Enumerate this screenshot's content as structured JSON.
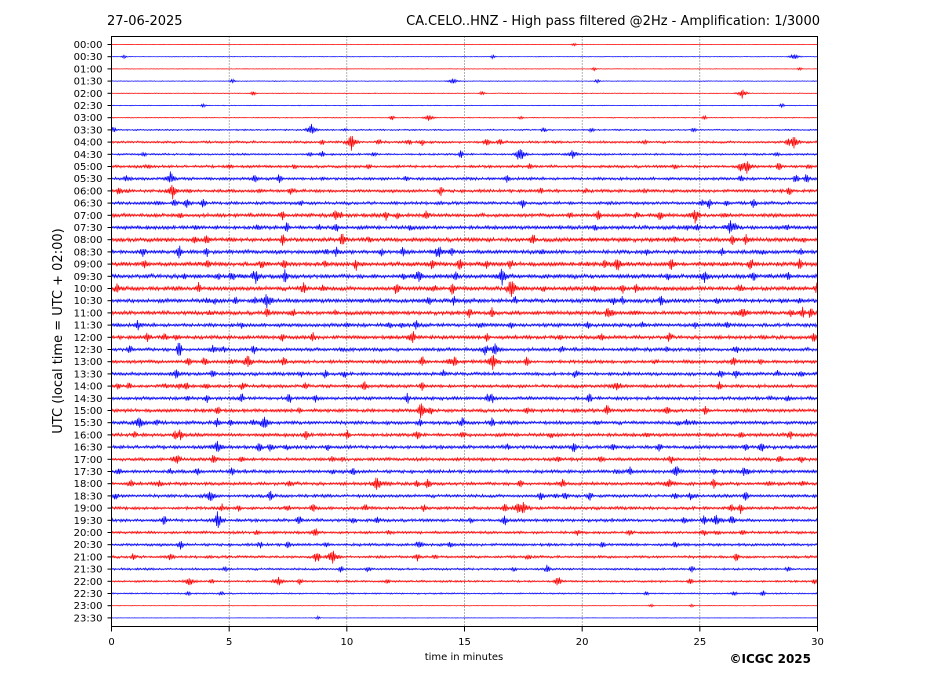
{
  "chart_data": {
    "type": "line",
    "date": "27-06-2025",
    "title": "CA.CELO..HNZ - High pass filtered @2Hz - Amplification: 1/3000",
    "xlabel": "time in minutes",
    "ylabel": "UTC (local time = UTC + 02:00)",
    "credit": "©ICGC 2025",
    "xlim": [
      0,
      30
    ],
    "x_ticks": [
      0,
      5,
      10,
      15,
      20,
      25,
      30
    ],
    "grid": "vertical dotted lines at x ticks",
    "colors": {
      "trace_a": "#0000ff",
      "trace_b": "#ff0000",
      "axis": "#000000",
      "background": "#ffffff"
    },
    "rows": [
      "00:00",
      "00:30",
      "01:00",
      "01:30",
      "02:00",
      "02:30",
      "03:00",
      "03:30",
      "04:00",
      "04:30",
      "05:00",
      "05:30",
      "06:00",
      "06:30",
      "07:00",
      "07:30",
      "08:00",
      "08:30",
      "09:00",
      "09:30",
      "10:00",
      "10:30",
      "11:00",
      "11:30",
      "12:00",
      "12:30",
      "13:00",
      "13:30",
      "14:00",
      "14:30",
      "15:00",
      "15:30",
      "16:00",
      "16:30",
      "17:00",
      "17:30",
      "18:00",
      "18:30",
      "19:00",
      "19:30",
      "20:00",
      "20:30",
      "21:00",
      "21:30",
      "22:00",
      "22:30",
      "23:00",
      "23:30"
    ],
    "noise_level": [
      0.2,
      0.3,
      0.3,
      0.4,
      0.4,
      0.4,
      0.5,
      0.8,
      1.3,
      1.1,
      1.5,
      1.6,
      1.7,
      1.7,
      2.0,
      2.0,
      2.2,
      2.1,
      2.3,
      2.3,
      2.3,
      2.2,
      2.1,
      2.0,
      2.0,
      1.9,
      1.9,
      1.8,
      1.8,
      1.8,
      1.9,
      1.9,
      1.9,
      1.9,
      1.8,
      1.8,
      1.8,
      1.7,
      1.7,
      1.7,
      1.5,
      1.5,
      1.4,
      1.2,
      1.1,
      0.8,
      0.3,
      0.2
    ],
    "events": [
      {
        "row": 1,
        "t": 29.0,
        "amp": 4
      },
      {
        "row": 3,
        "t": 14.5,
        "amp": 4
      },
      {
        "row": 4,
        "t": 26.8,
        "amp": 5
      },
      {
        "row": 6,
        "t": 13.5,
        "amp": 4
      },
      {
        "row": 7,
        "t": 8.5,
        "amp": 7
      },
      {
        "row": 8,
        "t": 10.2,
        "amp": 9
      },
      {
        "row": 8,
        "t": 29.0,
        "amp": 7
      },
      {
        "row": 9,
        "t": 17.4,
        "amp": 7
      },
      {
        "row": 9,
        "t": 19.6,
        "amp": 5
      },
      {
        "row": 10,
        "t": 27.0,
        "amp": 7
      },
      {
        "row": 11,
        "t": 2.5,
        "amp": 7
      },
      {
        "row": 12,
        "t": 2.6,
        "amp": 8
      },
      {
        "row": 14,
        "t": 24.8,
        "amp": 7
      },
      {
        "row": 15,
        "t": 26.3,
        "amp": 8
      },
      {
        "row": 17,
        "t": 13.9,
        "amp": 7
      },
      {
        "row": 18,
        "t": 21.5,
        "amp": 6
      },
      {
        "row": 19,
        "t": 16.6,
        "amp": 8
      },
      {
        "row": 19,
        "t": 25.2,
        "amp": 7
      },
      {
        "row": 20,
        "t": 17.0,
        "amp": 12
      },
      {
        "row": 21,
        "t": 6.6,
        "amp": 9
      },
      {
        "row": 22,
        "t": 26.8,
        "amp": 6
      },
      {
        "row": 25,
        "t": 16.3,
        "amp": 6
      },
      {
        "row": 26,
        "t": 5.8,
        "amp": 7
      },
      {
        "row": 26,
        "t": 16.2,
        "amp": 8
      },
      {
        "row": 28,
        "t": 21.5,
        "amp": 5
      },
      {
        "row": 31,
        "t": 1.2,
        "amp": 8
      },
      {
        "row": 31,
        "t": 6.5,
        "amp": 7
      },
      {
        "row": 33,
        "t": 4.5,
        "amp": 6
      },
      {
        "row": 35,
        "t": 24.0,
        "amp": 6
      },
      {
        "row": 36,
        "t": 11.3,
        "amp": 8
      },
      {
        "row": 36,
        "t": 23.7,
        "amp": 6
      },
      {
        "row": 37,
        "t": 4.2,
        "amp": 6
      },
      {
        "row": 38,
        "t": 17.5,
        "amp": 6
      },
      {
        "row": 39,
        "t": 4.5,
        "amp": 7
      },
      {
        "row": 39,
        "t": 25.7,
        "amp": 6
      },
      {
        "row": 42,
        "t": 9.4,
        "amp": 9
      },
      {
        "row": 44,
        "t": 3.3,
        "amp": 5
      },
      {
        "row": 44,
        "t": 7.1,
        "amp": 5
      }
    ]
  }
}
